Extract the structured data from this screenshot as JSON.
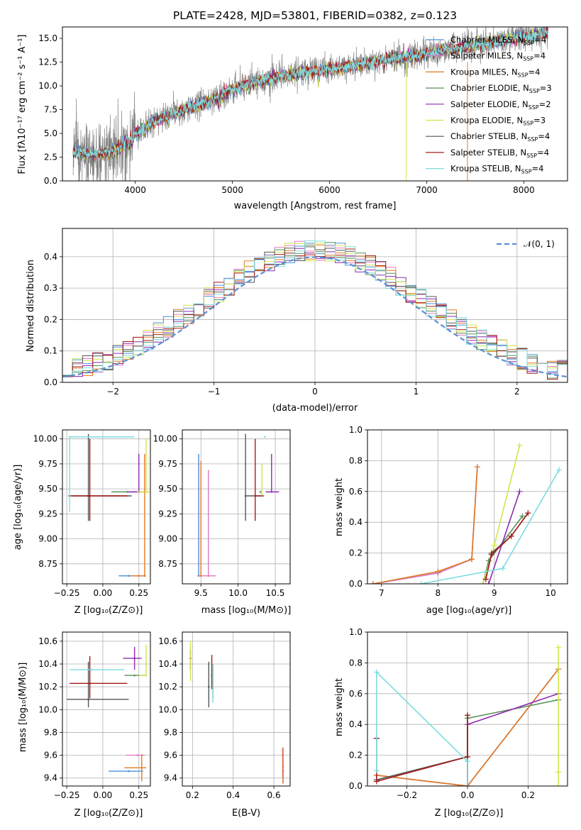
{
  "colors": {
    "Chabrier MILES": "#4a90d9",
    "Salpeter MILES": "#e377c2",
    "Kroupa MILES": "#e07b21",
    "Chabrier ELODIE": "#5a8f5a",
    "Salpeter ELODIE": "#8e2bb0",
    "Kroupa ELODIE": "#d4e44a",
    "Chabrier STELIB": "#555555",
    "Salpeter STELIB": "#a61c1c",
    "Kroupa STELIB": "#7fdbe0",
    "data": "#808080",
    "normal": "#5b8fd4"
  },
  "chart_data": [
    {
      "type": "line",
      "panel": "spectrum",
      "title": "PLATE=2428, MJD=53801, FIBERID=0382, z=0.123",
      "xlabel": "wavelength [Angstrom, rest frame]",
      "ylabel": "Flux [fλ10⁻¹⁷ erg cm⁻² s⁻¹ A⁻¹]",
      "xlim": [
        3250,
        8450
      ],
      "ylim": [
        0,
        16.2
      ],
      "xticks": [
        4000,
        5000,
        6000,
        7000,
        8000
      ],
      "yticks": [
        0.0,
        2.5,
        5.0,
        7.5,
        10.0,
        12.5,
        15.0
      ],
      "legend": [
        "Chabrier MILES, N_SSP=4",
        "Salpeter MILES, N_SSP=4",
        "Kroupa MILES, N_SSP=4",
        "Chabrier ELODIE, N_SSP=3",
        "Salpeter ELODIE, N_SSP=2",
        "Kroupa ELODIE, N_SSP=3",
        "Chabrier STELIB, N_SSP=4",
        "Salpeter STELIB, N_SSP=4",
        "Kroupa STELIB, N_SSP=4"
      ],
      "legend_position": "top-right",
      "continuum_x": [
        3400,
        3600,
        3800,
        4000,
        4200,
        4500,
        4800,
        5000,
        5200,
        5500,
        5800,
        6000,
        6300,
        6600,
        6900,
        7200,
        7500,
        7800,
        8100,
        8200
      ],
      "continuum_y": [
        3.0,
        2.8,
        3.2,
        5.0,
        6.3,
        7.5,
        8.5,
        9.7,
        10.3,
        11.0,
        11.5,
        11.8,
        12.2,
        12.9,
        13.2,
        13.8,
        14.3,
        14.8,
        15.3,
        15.6
      ]
    },
    {
      "type": "line",
      "panel": "residual-histogram",
      "xlabel": "(data-model)/error",
      "ylabel": "Normed distribution",
      "xlim": [
        -2.5,
        2.5
      ],
      "ylim": [
        0,
        0.49
      ],
      "xticks": [
        -2,
        -1,
        0,
        1,
        2
      ],
      "yticks": [
        0.0,
        0.1,
        0.2,
        0.3,
        0.4
      ],
      "legend": [
        "𝒩(0, 1)"
      ],
      "legend_position": "top-right",
      "bin_width": 0.1,
      "grid": true
    },
    {
      "type": "scatter",
      "panel": "age-vs-Z",
      "xlabel": "Z [log₁₀(Z/Z⊙)]",
      "ylabel": "age  [log₁₀(age/yr)]",
      "xlim": [
        -0.28,
        0.33
      ],
      "ylim": [
        8.55,
        10.09
      ],
      "xticks": [
        -0.25,
        0.0,
        0.25
      ],
      "xtick_labels": [
        "−0.25",
        "0.00",
        "0.25"
      ],
      "yticks": [
        8.75,
        9.0,
        9.25,
        9.5,
        9.75,
        10.0
      ],
      "ytick_labels": [
        "8.75",
        "9.00",
        "9.25",
        "9.50",
        "9.75",
        "10.00"
      ],
      "points": [
        {
          "series": "Chabrier MILES",
          "x": 0.18,
          "y": 8.63,
          "xerr": [
            0.07,
            0.1
          ],
          "yerr": [
            0.0,
            0.0
          ]
        },
        {
          "series": "Salpeter MILES",
          "x": 0.25,
          "y": 8.63,
          "xerr": [
            0.05,
            0.05
          ],
          "yerr": [
            0.0,
            0.0
          ]
        },
        {
          "series": "Kroupa MILES",
          "x": 0.29,
          "y": 8.63,
          "xerr": [
            0.1,
            0.0
          ],
          "yerr": [
            0.0,
            1.22
          ]
        },
        {
          "series": "Chabrier ELODIE",
          "x": 0.17,
          "y": 9.47,
          "xerr": [
            0.11,
            0.09
          ],
          "yerr": [
            0.0,
            0.0
          ]
        },
        {
          "series": "Salpeter ELODIE",
          "x": 0.25,
          "y": 9.47,
          "xerr": [
            0.08,
            0.06
          ],
          "yerr": [
            0.0,
            0.38
          ]
        },
        {
          "series": "Kroupa ELODIE",
          "x": 0.3,
          "y": 9.47,
          "xerr": [
            0.06,
            0.04
          ],
          "yerr": [
            0.0,
            0.53
          ]
        },
        {
          "series": "Chabrier STELIB",
          "x": -0.1,
          "y": 9.43,
          "xerr": [
            0.14,
            0.3
          ],
          "yerr": [
            0.25,
            0.62
          ]
        },
        {
          "series": "Salpeter STELIB",
          "x": -0.09,
          "y": 9.43,
          "xerr": [
            0.13,
            0.26
          ],
          "yerr": [
            0.25,
            0.57
          ]
        },
        {
          "series": "Kroupa STELIB",
          "x": -0.23,
          "y": 10.02,
          "xerr": [
            0.0,
            0.45
          ],
          "yerr": [
            0.75,
            0.0
          ]
        }
      ]
    },
    {
      "type": "scatter",
      "panel": "age-vs-mass",
      "xlabel": "mass [log₁₀(M/M⊙)]",
      "ylabel": "",
      "xlim": [
        9.25,
        10.7
      ],
      "ylim": [
        8.55,
        10.09
      ],
      "xticks": [
        9.5,
        10.0,
        10.5
      ],
      "yticks": [
        8.75,
        9.0,
        9.25,
        9.5,
        9.75,
        10.0
      ],
      "ytick_labels": [
        "8.75",
        "9.00",
        "9.25",
        "9.50",
        "9.75",
        "10.00"
      ],
      "points": [
        {
          "series": "Chabrier MILES",
          "x": 9.47,
          "y": 8.63,
          "xerr": [
            0.0,
            0.0
          ],
          "yerr": [
            0.0,
            1.22
          ]
        },
        {
          "series": "Salpeter MILES",
          "x": 9.6,
          "y": 8.63,
          "xerr": [
            0.15,
            0.1
          ],
          "yerr": [
            0.0,
            1.06
          ]
        },
        {
          "series": "Kroupa MILES",
          "x": 9.5,
          "y": 8.63,
          "xerr": [
            0.0,
            0.0
          ],
          "yerr": [
            0.0,
            1.15
          ]
        },
        {
          "series": "Chabrier ELODIE",
          "x": 10.3,
          "y": 9.47,
          "xerr": [
            0.0,
            0.0
          ],
          "yerr": [
            0.0,
            0.0
          ]
        },
        {
          "series": "Salpeter ELODIE",
          "x": 10.45,
          "y": 9.47,
          "xerr": [
            0.08,
            0.1
          ],
          "yerr": [
            0.0,
            0.38
          ]
        },
        {
          "series": "Kroupa ELODIE",
          "x": 10.32,
          "y": 9.45,
          "xerr": [
            0.0,
            0.0
          ],
          "yerr": [
            0.0,
            0.3
          ]
        },
        {
          "series": "Chabrier STELIB",
          "x": 10.1,
          "y": 9.43,
          "xerr": [
            0.0,
            0.22
          ],
          "yerr": [
            0.25,
            0.62
          ]
        },
        {
          "series": "Salpeter STELIB",
          "x": 10.23,
          "y": 9.43,
          "xerr": [
            0.0,
            0.12
          ],
          "yerr": [
            0.25,
            0.57
          ]
        },
        {
          "series": "Kroupa STELIB",
          "x": 10.36,
          "y": 10.02,
          "xerr": [
            0.0,
            0.0
          ],
          "yerr": [
            0.0,
            0.0
          ]
        }
      ]
    },
    {
      "type": "line",
      "panel": "mass-weight-vs-age",
      "xlabel": "age  [log₁₀(age/yr)]",
      "ylabel": "mass weight",
      "xlim": [
        6.75,
        10.3
      ],
      "ylim": [
        0.0,
        1.0
      ],
      "xticks": [
        7,
        8,
        9,
        10
      ],
      "yticks": [
        0.0,
        0.2,
        0.4,
        0.6,
        0.8,
        1.0
      ],
      "series": [
        {
          "name": "Chabrier MILES",
          "x": [
            6.85,
            8.0,
            8.6,
            8.7
          ],
          "y": [
            0.0,
            0.07,
            0.16,
            0.76
          ]
        },
        {
          "name": "Salpeter MILES",
          "x": [
            6.85,
            8.0,
            8.6,
            8.7
          ],
          "y": [
            0.0,
            0.07,
            0.16,
            0.76
          ]
        },
        {
          "name": "Kroupa MILES",
          "x": [
            6.85,
            8.0,
            8.6,
            8.7
          ],
          "y": [
            0.0,
            0.08,
            0.16,
            0.76
          ]
        },
        {
          "name": "Chabrier ELODIE",
          "x": [
            8.8,
            8.9,
            9.5
          ],
          "y": [
            0.0,
            0.15,
            0.44
          ]
        },
        {
          "name": "Salpeter ELODIE",
          "x": [
            8.9,
            9.45
          ],
          "y": [
            0.0,
            0.6
          ]
        },
        {
          "name": "Kroupa ELODIE",
          "x": [
            8.8,
            9.0,
            9.45
          ],
          "y": [
            0.0,
            0.25,
            0.9
          ]
        },
        {
          "name": "Chabrier STELIB",
          "x": [
            8.85,
            8.95,
            9.3,
            9.6
          ],
          "y": [
            0.03,
            0.2,
            0.31,
            0.46
          ]
        },
        {
          "name": "Salpeter STELIB",
          "x": [
            8.85,
            8.95,
            9.3,
            9.6
          ],
          "y": [
            0.03,
            0.19,
            0.31,
            0.46
          ]
        },
        {
          "name": "Kroupa STELIB",
          "x": [
            7.7,
            9.15,
            10.15
          ],
          "y": [
            0.0,
            0.1,
            0.74
          ]
        }
      ]
    },
    {
      "type": "scatter",
      "panel": "mass-vs-Z",
      "xlabel": "Z [log₁₀(Z/Z⊙)]",
      "ylabel": "mass [log₁₀(M/M⊙)]",
      "xlim": [
        -0.28,
        0.33
      ],
      "ylim": [
        9.33,
        10.68
      ],
      "xticks": [
        -0.25,
        0.0,
        0.25
      ],
      "xtick_labels": [
        "−0.25",
        "0.00",
        "0.25"
      ],
      "yticks": [
        9.4,
        9.6,
        9.8,
        10.0,
        10.2,
        10.4,
        10.6
      ],
      "points": [
        {
          "series": "Chabrier MILES",
          "x": 0.18,
          "y": 9.46,
          "xerr": [
            0.14,
            0.1
          ],
          "yerr": [
            0.0,
            0.0
          ]
        },
        {
          "series": "Salpeter MILES",
          "x": 0.24,
          "y": 9.6,
          "xerr": [
            0.08,
            0.05
          ],
          "yerr": [
            0.0,
            0.0
          ]
        },
        {
          "series": "Kroupa MILES",
          "x": 0.27,
          "y": 9.49,
          "xerr": [
            0.12,
            0.03
          ],
          "yerr": [
            0.12,
            0.12
          ]
        },
        {
          "series": "Chabrier ELODIE",
          "x": 0.22,
          "y": 10.3,
          "xerr": [
            0.07,
            0.08
          ],
          "yerr": [
            0.0,
            0.0
          ]
        },
        {
          "series": "Salpeter ELODIE",
          "x": 0.22,
          "y": 10.45,
          "xerr": [
            0.08,
            0.05
          ],
          "yerr": [
            0.1,
            0.1
          ]
        },
        {
          "series": "Kroupa ELODIE",
          "x": 0.3,
          "y": 10.3,
          "xerr": [
            0.05,
            0.0
          ],
          "yerr": [
            0.0,
            0.27
          ]
        },
        {
          "series": "Chabrier STELIB",
          "x": -0.1,
          "y": 10.09,
          "xerr": [
            0.15,
            0.28
          ],
          "yerr": [
            0.07,
            0.33
          ]
        },
        {
          "series": "Salpeter STELIB",
          "x": -0.09,
          "y": 10.23,
          "xerr": [
            0.14,
            0.26
          ],
          "yerr": [
            0.13,
            0.24
          ]
        },
        {
          "series": "Kroupa STELIB",
          "x": -0.08,
          "y": 10.35,
          "xerr": [
            0.15,
            0.23
          ],
          "yerr": [
            0.0,
            0.0
          ]
        }
      ]
    },
    {
      "type": "scatter",
      "panel": "mass-vs-ebv",
      "xlabel": "E(B-V)",
      "ylabel": "",
      "xlim": [
        0.15,
        0.68
      ],
      "ylim": [
        9.33,
        10.68
      ],
      "xticks": [
        0.2,
        0.4,
        0.6
      ],
      "yticks": [
        9.4,
        9.6,
        9.8,
        10.0,
        10.2,
        10.4,
        10.6
      ],
      "points": [
        {
          "series": "Chabrier MILES",
          "x": 0.645,
          "y": 9.46,
          "yerr": [
            0.1,
            0.2
          ]
        },
        {
          "series": "Salpeter MILES",
          "x": 0.643,
          "y": 9.6,
          "yerr": [
            0.2,
            0.06
          ]
        },
        {
          "series": "Kroupa MILES",
          "x": 0.645,
          "y": 9.5,
          "yerr": [
            0.15,
            0.17
          ]
        },
        {
          "series": "Chabrier ELODIE",
          "x": 0.3,
          "y": 10.3,
          "yerr": [
            0.2,
            0.1
          ]
        },
        {
          "series": "Salpeter ELODIE",
          "x": 0.19,
          "y": 10.45,
          "yerr": [
            0.1,
            0.08
          ]
        },
        {
          "series": "Kroupa ELODIE",
          "x": 0.19,
          "y": 10.4,
          "yerr": [
            0.15,
            0.2
          ]
        },
        {
          "series": "Chabrier STELIB",
          "x": 0.28,
          "y": 10.2,
          "yerr": [
            0.18,
            0.22
          ]
        },
        {
          "series": "Salpeter STELIB",
          "x": 0.295,
          "y": 10.3,
          "yerr": [
            0.12,
            0.18
          ]
        },
        {
          "series": "Kroupa STELIB",
          "x": 0.3,
          "y": 10.3,
          "yerr": [
            0.24,
            0.1
          ]
        }
      ]
    },
    {
      "type": "line",
      "panel": "mass-weight-vs-Z",
      "xlabel": "Z [log₁₀(Z/Z⊙)]",
      "ylabel": "mass weight",
      "xlim": [
        -0.33,
        0.33
      ],
      "ylim": [
        0.0,
        1.0
      ],
      "xticks": [
        -0.2,
        0.0,
        0.2
      ],
      "xtick_labels": [
        "−0.2",
        "0.0",
        "0.2"
      ],
      "yticks": [
        0.0,
        0.2,
        0.4,
        0.6,
        0.8,
        1.0
      ],
      "series": [
        {
          "name": "Chabrier MILES",
          "x": [
            -0.3,
            0.0,
            0.3
          ],
          "y": [
            0.07,
            0.0,
            0.76
          ]
        },
        {
          "name": "Salpeter MILES",
          "x": [
            -0.3,
            0.0,
            0.3
          ],
          "y": [
            0.07,
            0.0,
            0.76
          ]
        },
        {
          "name": "Kroupa MILES",
          "x": [
            -0.3,
            0.0,
            0.3
          ],
          "y": [
            0.07,
            0.0,
            0.76
          ]
        },
        {
          "name": "Chabrier ELODIE",
          "x": [
            0.0,
            0.0,
            0.3
          ],
          "y": [
            0.0,
            0.44,
            0.56
          ]
        },
        {
          "name": "Salpeter ELODIE",
          "x": [
            0.0,
            0.0,
            0.3
          ],
          "y": [
            0.0,
            0.4,
            0.6
          ]
        },
        {
          "name": "Kroupa ELODIE",
          "x": [
            0.3,
            0.3,
            0.3
          ],
          "y": [
            0.0,
            0.9,
            0.09
          ]
        },
        {
          "name": "Chabrier STELIB",
          "x": [
            -0.3,
            -0.3,
            0.0,
            0.0
          ],
          "y": [
            0.31,
            0.04,
            0.19,
            0.46
          ]
        },
        {
          "name": "Salpeter STELIB",
          "x": [
            -0.3,
            -0.3,
            0.0,
            0.0
          ],
          "y": [
            0.31,
            0.03,
            0.19,
            0.46
          ]
        },
        {
          "name": "Kroupa STELIB",
          "x": [
            -0.3,
            -0.3,
            0.0,
            0.0
          ],
          "y": [
            0.1,
            0.74,
            0.16,
            0.0
          ]
        }
      ]
    }
  ]
}
